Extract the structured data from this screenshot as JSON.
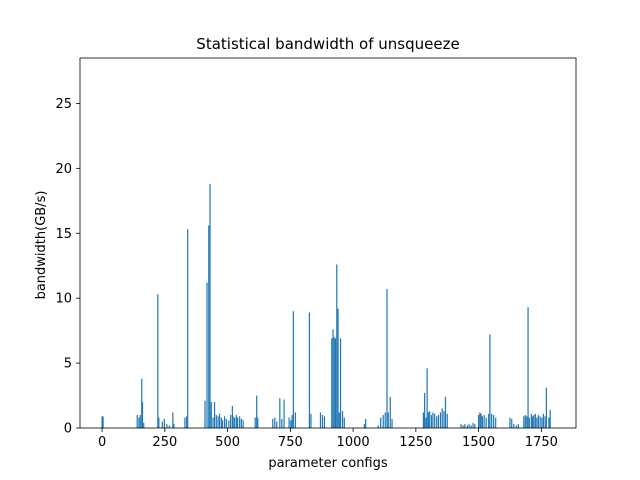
{
  "chart_data": {
    "type": "bar",
    "title": "Statistical bandwidth of unsqueeze",
    "xlabel": "parameter configs",
    "ylabel": "bandwidth(GB/s)",
    "xlim": [
      -88,
      1888
    ],
    "ylim": [
      0,
      28.5
    ],
    "xticks": [
      0,
      250,
      500,
      750,
      1000,
      1250,
      1500,
      1750
    ],
    "yticks": [
      0,
      5,
      10,
      15,
      20,
      25
    ],
    "grid": false,
    "bar_color": "#1f77b4",
    "x": [
      0,
      4,
      140,
      147,
      152,
      158,
      161,
      166,
      222,
      226,
      240,
      248,
      258,
      268,
      282,
      286,
      330,
      337,
      341,
      410,
      418,
      425,
      430,
      435,
      442,
      448,
      455,
      462,
      468,
      475,
      480,
      488,
      495,
      505,
      512,
      519,
      522,
      528,
      535,
      540,
      548,
      555,
      562,
      610,
      616,
      620,
      680,
      688,
      696,
      708,
      716,
      725,
      745,
      752,
      757,
      762,
      770,
      826,
      832,
      870,
      878,
      886,
      915,
      920,
      925,
      930,
      935,
      940,
      945,
      950,
      958,
      965,
      1045,
      1050,
      1100,
      1110,
      1120,
      1128,
      1135,
      1140,
      1148,
      1155,
      1280,
      1285,
      1290,
      1295,
      1300,
      1305,
      1312,
      1318,
      1325,
      1333,
      1340,
      1348,
      1355,
      1362,
      1368,
      1375,
      1430,
      1438,
      1445,
      1455,
      1462,
      1470,
      1478,
      1485,
      1500,
      1505,
      1510,
      1515,
      1522,
      1530,
      1540,
      1545,
      1552,
      1560,
      1568,
      1625,
      1632,
      1640,
      1650,
      1658,
      1680,
      1686,
      1692,
      1697,
      1702,
      1710,
      1715,
      1720,
      1726,
      1732,
      1738,
      1745,
      1752,
      1758,
      1765,
      1770,
      1780,
      1785
    ],
    "values": [
      0.9,
      0.9,
      1.0,
      0.8,
      1.0,
      3.8,
      2.0,
      0.4,
      10.3,
      0.8,
      0.5,
      0.7,
      0.3,
      0.2,
      1.2,
      0.3,
      0.8,
      0.9,
      15.3,
      2.1,
      11.2,
      15.6,
      18.8,
      2.0,
      0.8,
      2.0,
      1.0,
      0.9,
      1.1,
      0.8,
      0.6,
      0.9,
      0.7,
      0.6,
      1.0,
      1.7,
      0.9,
      0.8,
      1.0,
      0.8,
      0.9,
      0.7,
      0.6,
      0.8,
      2.5,
      0.8,
      0.7,
      0.8,
      0.5,
      2.3,
      0.7,
      2.2,
      0.8,
      0.6,
      1.0,
      9.0,
      1.2,
      8.9,
      1.1,
      1.2,
      1.0,
      0.9,
      6.9,
      7.6,
      7.0,
      6.9,
      12.6,
      9.2,
      1.2,
      6.9,
      1.3,
      0.8,
      0.3,
      0.7,
      0.2,
      0.8,
      1.0,
      1.2,
      10.7,
      1.2,
      2.4,
      0.7,
      1.2,
      2.7,
      0.8,
      4.6,
      1.2,
      1.3,
      1.0,
      1.2,
      1.1,
      0.9,
      1.0,
      1.2,
      1.5,
      1.3,
      2.4,
      1.1,
      0.3,
      0.2,
      0.3,
      0.2,
      0.3,
      0.2,
      0.4,
      0.3,
      1.0,
      1.2,
      1.1,
      0.9,
      1.0,
      0.8,
      1.1,
      7.2,
      1.1,
      1.0,
      0.8,
      0.8,
      0.7,
      0.3,
      0.2,
      0.3,
      0.9,
      1.0,
      0.9,
      9.3,
      0.8,
      1.1,
      0.9,
      1.0,
      1.1,
      0.8,
      1.0,
      0.9,
      0.8,
      1.1,
      0.9,
      3.1,
      0.8,
      1.4
    ]
  }
}
